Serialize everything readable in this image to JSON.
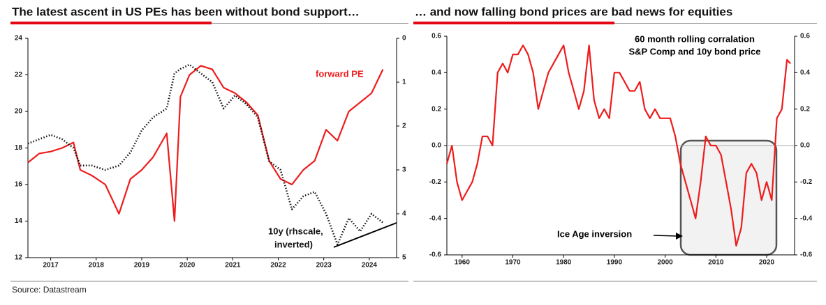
{
  "chart_data": [
    {
      "type": "line",
      "title": "The latest ascent in US PEs has been without bond support…",
      "x": [
        2017,
        2017.25,
        2017.5,
        2017.75,
        2018,
        2018.15,
        2018.4,
        2018.7,
        2019,
        2019.25,
        2019.5,
        2019.75,
        2020.05,
        2020.22,
        2020.35,
        2020.55,
        2020.8,
        2021.05,
        2021.3,
        2021.55,
        2021.8,
        2022.05,
        2022.3,
        2022.55,
        2022.8,
        2023.05,
        2023.3,
        2023.55,
        2023.8,
        2024.05,
        2024.3,
        2024.55,
        2024.8
      ],
      "xlim": [
        2017,
        2025.1
      ],
      "xticks": [
        {
          "value": 2017.5,
          "label": "2017"
        },
        {
          "value": 2018.5,
          "label": "2018"
        },
        {
          "value": 2019.5,
          "label": "2019"
        },
        {
          "value": 2020.5,
          "label": "2020"
        },
        {
          "value": 2021.5,
          "label": "2021"
        },
        {
          "value": 2022.5,
          "label": "2022"
        },
        {
          "value": 2023.5,
          "label": "2023"
        },
        {
          "value": 2024.5,
          "label": "2024"
        }
      ],
      "ylim": [
        12,
        24
      ],
      "yticks": [
        12,
        14,
        16,
        18,
        20,
        22,
        24
      ],
      "y2lim": [
        5,
        0
      ],
      "y2ticks": [
        0,
        1,
        2,
        3,
        4,
        5
      ],
      "series": [
        {
          "name": "forward PE",
          "color": "#ee1c1c",
          "style": "solid",
          "values": [
            17.2,
            17.7,
            17.8,
            18.0,
            18.3,
            16.8,
            16.5,
            16.0,
            14.4,
            16.3,
            16.8,
            17.5,
            18.8,
            14.0,
            20.8,
            22.0,
            22.5,
            22.3,
            21.3,
            21.0,
            20.5,
            19.8,
            17.3,
            16.3,
            16.0,
            16.8,
            17.3,
            19.0,
            18.4,
            20.0,
            20.5,
            21.0,
            22.3
          ]
        },
        {
          "name": [
            "10y (rhscale,",
            "inverted)"
          ],
          "color": "#111111",
          "style": "dotted",
          "axis": "y2",
          "values": [
            2.4,
            2.3,
            2.2,
            2.3,
            2.5,
            2.9,
            2.9,
            3.0,
            2.9,
            2.6,
            2.1,
            1.8,
            1.6,
            0.8,
            0.7,
            0.6,
            0.8,
            1.0,
            1.6,
            1.3,
            1.5,
            1.8,
            2.8,
            3.0,
            3.9,
            3.6,
            3.5,
            4.0,
            4.7,
            4.1,
            4.4,
            4.0,
            4.2
          ]
        }
      ]
    },
    {
      "type": "line",
      "title": "… and now falling bond prices are bad news for equities",
      "annotations": [
        "60 month rolling corralation",
        "S&P Comp and 10y bond price",
        "Ice Age inversion"
      ],
      "x": [
        1957,
        1958,
        1959,
        1960,
        1961,
        1962,
        1963,
        1964,
        1965,
        1966,
        1967,
        1968,
        1969,
        1970,
        1971,
        1972,
        1973,
        1974,
        1975,
        1976,
        1977,
        1978,
        1979,
        1980,
        1981,
        1982,
        1983,
        1984,
        1985,
        1986,
        1987,
        1988,
        1989,
        1990,
        1991,
        1992,
        1993,
        1994,
        1995,
        1996,
        1997,
        1998,
        1999,
        2000,
        2001,
        2002,
        2003,
        2004,
        2005,
        2006,
        2007,
        2008,
        2009,
        2010,
        2011,
        2012,
        2013,
        2014,
        2015,
        2016,
        2017,
        2018,
        2019,
        2020,
        2021,
        2022,
        2023,
        2024,
        2024.7
      ],
      "xlim": [
        1957,
        2025.5
      ],
      "xticks": [
        1960,
        1970,
        1980,
        1990,
        2000,
        2010,
        2020
      ],
      "ylim": [
        -0.6,
        0.6
      ],
      "yticks": [
        -0.6,
        -0.4,
        -0.2,
        {
          "value": 0,
          "label": "0.0"
        },
        0.2,
        0.4,
        0.6
      ],
      "y2lim": [
        -0.6,
        0.6
      ],
      "y2ticks": [
        -0.6,
        -0.4,
        -0.2,
        {
          "value": 0,
          "label": "0.0"
        },
        0.2,
        0.4,
        0.6
      ],
      "zero_line": true,
      "series": [
        {
          "color": "#ee1c1c",
          "style": "solid",
          "values": [
            -0.1,
            0.0,
            -0.2,
            -0.3,
            -0.25,
            -0.2,
            -0.1,
            0.05,
            0.05,
            0.0,
            0.4,
            0.45,
            0.4,
            0.5,
            0.5,
            0.55,
            0.5,
            0.4,
            0.2,
            0.3,
            0.4,
            0.45,
            0.5,
            0.55,
            0.4,
            0.3,
            0.2,
            0.3,
            0.55,
            0.25,
            0.15,
            0.2,
            0.15,
            0.4,
            0.4,
            0.35,
            0.3,
            0.3,
            0.35,
            0.2,
            0.15,
            0.2,
            0.15,
            0.15,
            0.15,
            0.05,
            -0.1,
            -0.2,
            -0.3,
            -0.4,
            -0.2,
            0.05,
            0.0,
            0.0,
            -0.05,
            -0.2,
            -0.35,
            -0.55,
            -0.45,
            -0.15,
            -0.1,
            -0.15,
            -0.3,
            -0.2,
            -0.3,
            0.15,
            0.2,
            0.47,
            0.45
          ]
        }
      ]
    }
  ],
  "source": "Source: Datastream"
}
